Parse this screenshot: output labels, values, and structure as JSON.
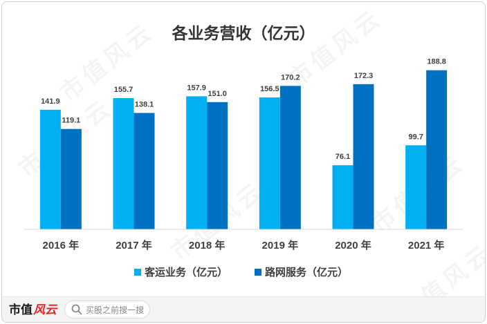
{
  "watermark": "市值风云",
  "chart_data": {
    "type": "bar",
    "title": "各业务营收（亿元）",
    "categories": [
      "2016 年",
      "2017 年",
      "2018 年",
      "2019 年",
      "2020 年",
      "2021 年"
    ],
    "series": [
      {
        "name": "客运业务（亿元）",
        "values": [
          141.9,
          155.7,
          157.9,
          156.5,
          76.1,
          99.7
        ],
        "color": "#00b0f0"
      },
      {
        "name": "路网服务（亿元）",
        "values": [
          119.1,
          138.1,
          151.0,
          170.2,
          172.3,
          188.8
        ],
        "color": "#0070c0"
      }
    ],
    "ylim": [
      0,
      200
    ],
    "grid": false,
    "data_labels": true,
    "legend_position": "bottom"
  },
  "footer": {
    "logo_main": "市值",
    "logo_accent": "风云",
    "search_icon": "search-icon",
    "search_placeholder": "买股之前搜一搜"
  }
}
